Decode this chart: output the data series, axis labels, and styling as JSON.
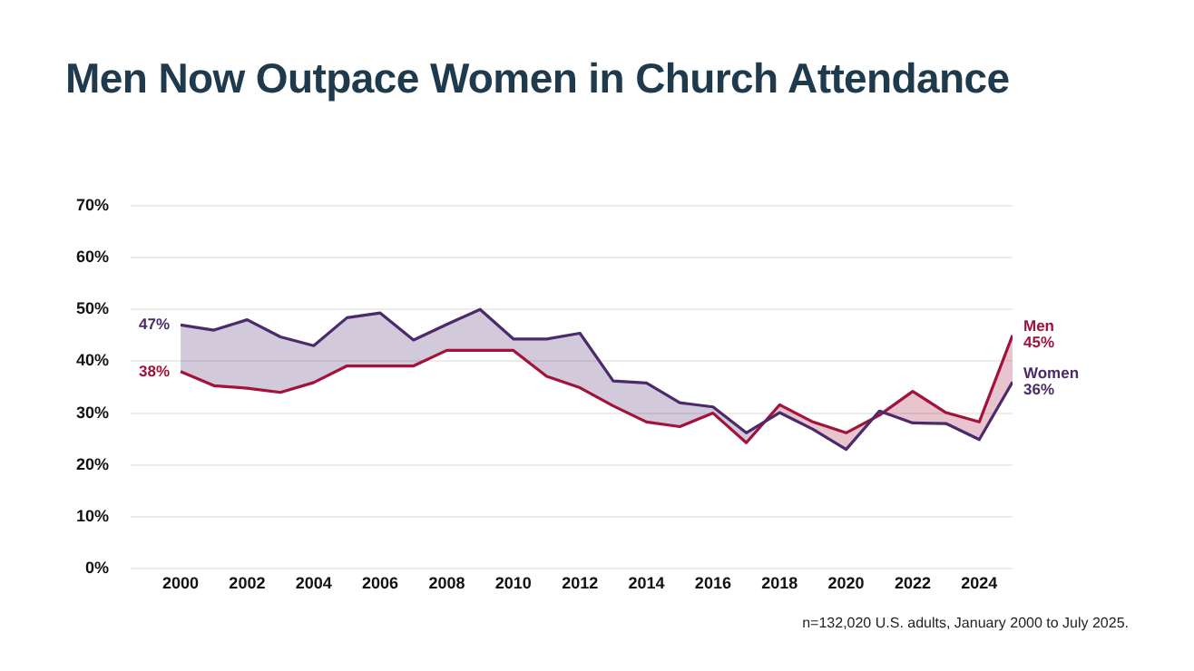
{
  "chart_data": {
    "type": "line",
    "title": "Men Now Outpace Women in Church Attendance",
    "x": [
      2000,
      2001,
      2002,
      2003,
      2004,
      2005,
      2006,
      2007,
      2008,
      2009,
      2010,
      2011,
      2012,
      2013,
      2014,
      2015,
      2016,
      2017,
      2018,
      2019,
      2020,
      2021,
      2022,
      2023,
      2024,
      2025
    ],
    "series": [
      {
        "name": "Women",
        "color": "#4b2a6b",
        "values": [
          47,
          46.0,
          48.0,
          44.7,
          43.0,
          48.4,
          49.3,
          44.1,
          47.1,
          50.0,
          44.3,
          44.3,
          45.4,
          36.2,
          35.8,
          32.0,
          31.2,
          26.2,
          30.1,
          26.9,
          23.0,
          30.4,
          28.1,
          28.0,
          24.9,
          36
        ],
        "value_labels": [
          "47%",
          null,
          null,
          null,
          null,
          null,
          null,
          null,
          null,
          null,
          null,
          null,
          null,
          null,
          null,
          null,
          null,
          null,
          null,
          null,
          null,
          null,
          null,
          null,
          null,
          "36%"
        ],
        "lower": [
          38,
          35.3,
          34.8,
          34.0,
          35.9,
          39.1,
          39.1,
          39.1,
          42.1,
          42.1,
          42.1,
          37.1,
          34.9,
          31.4,
          28.3,
          27.4,
          30.0,
          24.3,
          31.6,
          28.3,
          26.2,
          29.6,
          34.2,
          30.1,
          28.3,
          45
        ],
        "upper": [
          47,
          46.0,
          48.0,
          44.7,
          43.0,
          48.4,
          49.3,
          44.1,
          47.1,
          50.0,
          44.3,
          44.3,
          45.4,
          36.2,
          35.8,
          32.0,
          31.2,
          26.2,
          30.1,
          26.9,
          23.0,
          30.4,
          28.1,
          28.0,
          24.9,
          36
        ]
      },
      {
        "name": "Men",
        "color": "#a3123a",
        "values": [
          38,
          35.3,
          34.8,
          34.0,
          35.9,
          39.1,
          39.1,
          39.1,
          42.1,
          42.1,
          42.1,
          37.1,
          34.9,
          31.4,
          28.3,
          27.4,
          30.0,
          24.3,
          31.6,
          28.3,
          26.2,
          29.6,
          34.2,
          30.1,
          28.3,
          45
        ],
        "value_labels": [
          "38%",
          null,
          null,
          null,
          null,
          null,
          null,
          null,
          null,
          null,
          null,
          null,
          null,
          null,
          null,
          null,
          null,
          null,
          null,
          null,
          null,
          null,
          null,
          null,
          null,
          "45%"
        ]
      }
    ],
    "xlim": [
      1998.5,
      2025
    ],
    "xticks": [
      2000,
      2002,
      2004,
      2006,
      2008,
      2010,
      2012,
      2014,
      2016,
      2018,
      2020,
      2022,
      2024
    ],
    "ylim": [
      0,
      70
    ],
    "yticks": [
      {
        "value": 0,
        "label": "0%"
      },
      {
        "value": 10,
        "label": "10%"
      },
      {
        "value": 20,
        "label": "20%"
      },
      {
        "value": 30,
        "label": "30%"
      },
      {
        "value": 40,
        "label": "40%"
      },
      {
        "value": 50,
        "label": "50%"
      },
      {
        "value": 60,
        "label": "60%"
      },
      {
        "value": 70,
        "label": "70%"
      }
    ],
    "grid": "y",
    "legend": false,
    "marker": "none",
    "annotations": [
      "n=132,020 U.S. adults, January 2000 to July 2025."
    ]
  }
}
